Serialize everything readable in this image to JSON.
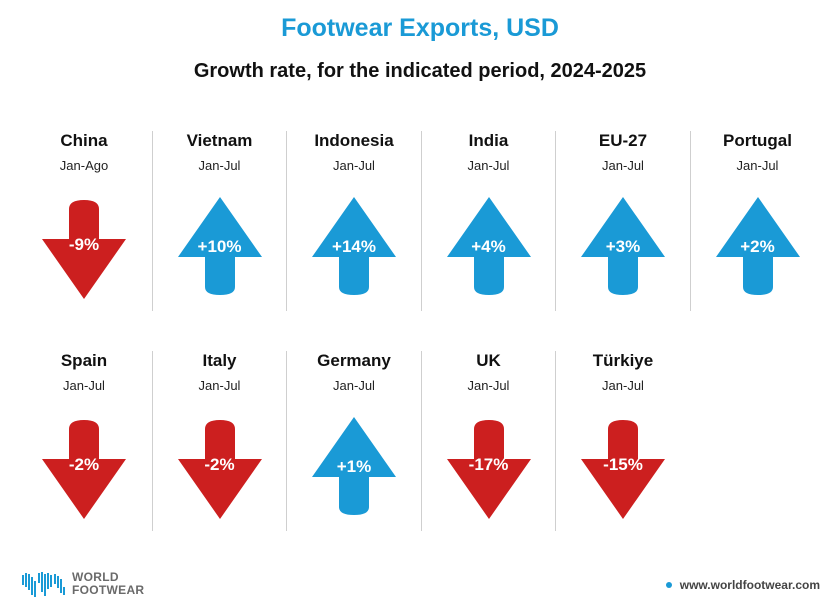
{
  "header": {
    "title": "Footwear Exports, USD",
    "subtitle": "Growth rate, for the indicated period, 2024-2025"
  },
  "colors": {
    "up": "#1a9ad6",
    "down": "#cc1f1f",
    "title": "#1a9ad6"
  },
  "chart_data": {
    "type": "table",
    "title": "Footwear Exports, USD",
    "subtitle": "Growth rate, for the indicated period, 2024-2025",
    "unit": "%",
    "items": [
      {
        "country": "China",
        "period": "Jan-Ago",
        "label": "-9%",
        "value": -9,
        "direction": "down"
      },
      {
        "country": "Vietnam",
        "period": "Jan-Jul",
        "label": "+10%",
        "value": 10,
        "direction": "up"
      },
      {
        "country": "Indonesia",
        "period": "Jan-Jul",
        "label": "+14%",
        "value": 14,
        "direction": "up"
      },
      {
        "country": "India",
        "period": "Jan-Jul",
        "label": "+4%",
        "value": 4,
        "direction": "up"
      },
      {
        "country": "EU-27",
        "period": "Jan-Jul",
        "label": "+3%",
        "value": 3,
        "direction": "up"
      },
      {
        "country": "Portugal",
        "period": "Jan-Jul",
        "label": "+2%",
        "value": 2,
        "direction": "up"
      },
      {
        "country": "Spain",
        "period": "Jan-Jul",
        "label": "-2%",
        "value": -2,
        "direction": "down"
      },
      {
        "country": "Italy",
        "period": "Jan-Jul",
        "label": "-2%",
        "value": -2,
        "direction": "down"
      },
      {
        "country": "Germany",
        "period": "Jan-Jul",
        "label": "+1%",
        "value": 1,
        "direction": "up"
      },
      {
        "country": "UK",
        "period": "Jan-Jul",
        "label": "-17%",
        "value": -17,
        "direction": "down"
      },
      {
        "country": "Türkiye",
        "period": "Jan-Jul",
        "label": "-15%",
        "value": -15,
        "direction": "down"
      }
    ]
  },
  "footer": {
    "logo_line1": "WORLD",
    "logo_line2": "FOOTWEAR",
    "url": "www.worldfootwear.com",
    "logo_icon": "world-map-icon"
  }
}
